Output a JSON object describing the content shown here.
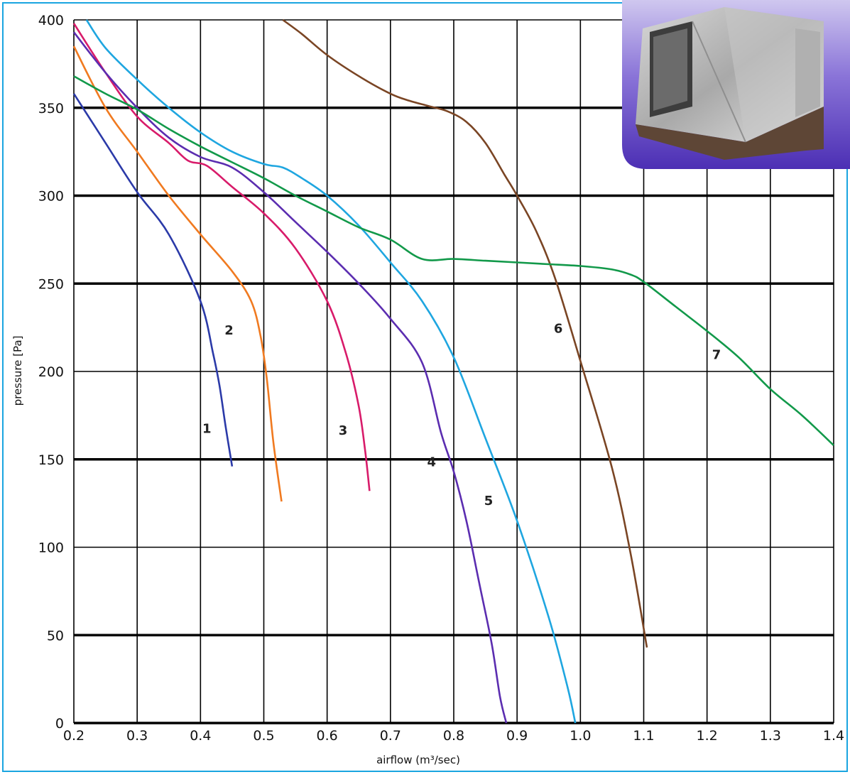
{
  "chart_data": {
    "type": "line",
    "title": "",
    "xlabel": "airflow (m³/sec)",
    "ylabel": "pressure [Pa]",
    "xlim": [
      0.2,
      1.4
    ],
    "ylim": [
      0,
      400
    ],
    "xticks": [
      "0.2",
      "0.3",
      "0.4",
      "0.5",
      "0.6",
      "0.7",
      "0.8",
      "0.9",
      "1.0",
      "1.1",
      "1.2",
      "1.3",
      "1.4"
    ],
    "yticks": [
      "0",
      "50",
      "100",
      "150",
      "200",
      "250",
      "300",
      "350",
      "400"
    ],
    "grid": true,
    "legend": "none",
    "series": [
      {
        "name": "1",
        "color": "#2b3aa8",
        "x": [
          0.2,
          0.25,
          0.3,
          0.35,
          0.4,
          0.42,
          0.43,
          0.44,
          0.45
        ],
        "y": [
          358,
          330,
          302,
          278,
          240,
          210,
          192,
          168,
          146
        ]
      },
      {
        "name": "2",
        "color": "#f07a20",
        "x": [
          0.2,
          0.25,
          0.3,
          0.35,
          0.4,
          0.45,
          0.48,
          0.495,
          0.505,
          0.515,
          0.528
        ],
        "y": [
          385,
          350,
          325,
          300,
          278,
          257,
          240,
          220,
          195,
          160,
          126
        ]
      },
      {
        "name": "3",
        "color": "#d81b6a",
        "x": [
          0.2,
          0.25,
          0.3,
          0.35,
          0.38,
          0.41,
          0.45,
          0.5,
          0.55,
          0.6,
          0.63,
          0.65,
          0.66,
          0.667
        ],
        "y": [
          398,
          370,
          345,
          330,
          320,
          317,
          305,
          290,
          270,
          240,
          210,
          180,
          155,
          132
        ]
      },
      {
        "name": "4",
        "color": "#5b2db0",
        "x": [
          0.2,
          0.25,
          0.3,
          0.35,
          0.4,
          0.45,
          0.5,
          0.55,
          0.6,
          0.65,
          0.7,
          0.75,
          0.78,
          0.8,
          0.82,
          0.84,
          0.86,
          0.873,
          0.883
        ],
        "y": [
          393,
          370,
          350,
          333,
          322,
          316,
          302,
          285,
          268,
          250,
          230,
          205,
          165,
          143,
          115,
          80,
          45,
          15,
          0
        ]
      },
      {
        "name": "5",
        "color": "#1fa6e0",
        "x": [
          0.22,
          0.25,
          0.3,
          0.35,
          0.4,
          0.45,
          0.5,
          0.53,
          0.56,
          0.6,
          0.65,
          0.7,
          0.75,
          0.8,
          0.85,
          0.9,
          0.95,
          0.98,
          0.992
        ],
        "y": [
          400,
          384,
          366,
          350,
          336,
          325,
          318,
          316,
          310,
          300,
          283,
          262,
          240,
          208,
          162,
          115,
          60,
          20,
          0
        ]
      },
      {
        "name": "6",
        "color": "#7a4524",
        "x": [
          0.53,
          0.56,
          0.6,
          0.65,
          0.7,
          0.73,
          0.76,
          0.79,
          0.82,
          0.85,
          0.88,
          0.9,
          0.93,
          0.96,
          1.0,
          1.05,
          1.08,
          1.105
        ],
        "y": [
          400,
          392,
          380,
          368,
          358,
          354,
          351,
          348,
          342,
          330,
          312,
          300,
          280,
          253,
          206,
          145,
          95,
          43
        ]
      },
      {
        "name": "7",
        "color": "#12994a",
        "x": [
          0.2,
          0.25,
          0.3,
          0.35,
          0.4,
          0.45,
          0.5,
          0.55,
          0.6,
          0.65,
          0.7,
          0.75,
          0.8,
          0.85,
          0.9,
          0.95,
          1.0,
          1.05,
          1.08,
          1.1,
          1.15,
          1.2,
          1.25,
          1.3,
          1.35,
          1.4
        ],
        "y": [
          368,
          358,
          349,
          338,
          328,
          319,
          310,
          300,
          291,
          282,
          275,
          264,
          264,
          263,
          262,
          261,
          260,
          258,
          255,
          251,
          237,
          223,
          208,
          190,
          175,
          158
        ]
      }
    ],
    "curve_labels": [
      {
        "text": "1",
        "x": 0.41,
        "y": 165
      },
      {
        "text": "2",
        "x": 0.445,
        "y": 221
      },
      {
        "text": "3",
        "x": 0.625,
        "y": 164
      },
      {
        "text": "4",
        "x": 0.765,
        "y": 146
      },
      {
        "text": "5",
        "x": 0.855,
        "y": 124
      },
      {
        "text": "6",
        "x": 0.965,
        "y": 222
      },
      {
        "text": "7",
        "x": 1.215,
        "y": 207
      }
    ],
    "colors": {
      "frame": "#1aa5e0",
      "grid": "#000000",
      "photo_panel": "#5b3fc2"
    },
    "photo": "product photo of a rectangular galvanized steel duct fan unit"
  }
}
